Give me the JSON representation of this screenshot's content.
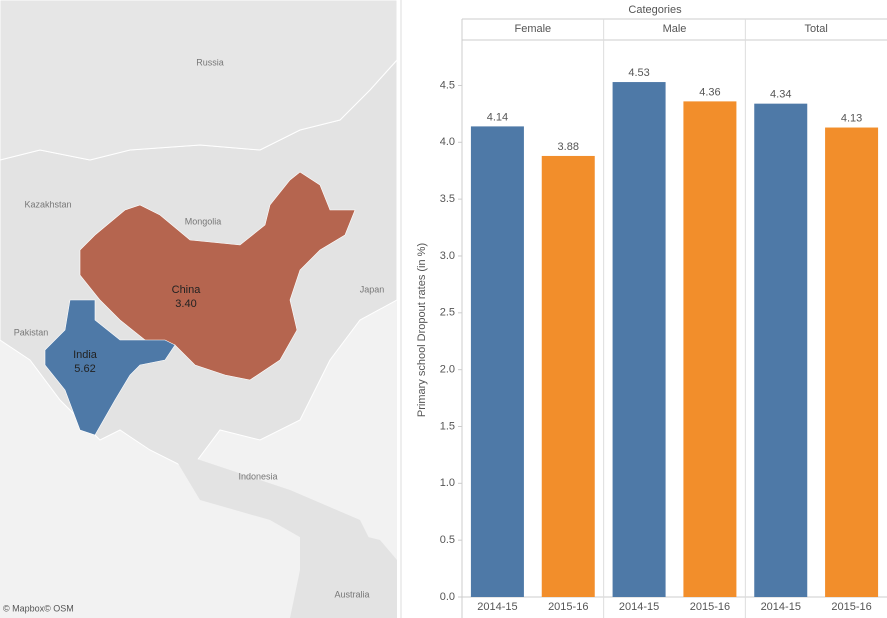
{
  "chart_data": [
    {
      "type": "bar",
      "title": "Categories",
      "y_label": "Primary school Dropout rates (in %)",
      "categories": [
        "Female",
        "Male",
        "Total"
      ],
      "series": [
        {
          "name": "2014-15",
          "color": "#4e79a7",
          "values": [
            4.14,
            4.53,
            4.34
          ]
        },
        {
          "name": "2015-16",
          "color": "#f28e2b",
          "values": [
            3.88,
            4.36,
            4.13
          ]
        }
      ],
      "ylim": [
        0,
        4.9
      ],
      "yticks": [
        {
          "value": 0,
          "label": "0.0"
        },
        0.5,
        {
          "value": 1,
          "label": "1.0"
        },
        1.5,
        {
          "value": 2,
          "label": "2.0"
        },
        2.5,
        {
          "value": 3,
          "label": "3.0"
        },
        3.5,
        {
          "value": 4,
          "label": "4.0"
        },
        4.5
      ]
    },
    {
      "type": "map",
      "categories": [
        "China",
        "India"
      ],
      "values": [
        3.4,
        5.62
      ],
      "value_labels": [
        "3.40",
        "5.62"
      ],
      "colors": [
        "#b5654f",
        "#4e79a7"
      ],
      "place_labels": [
        "Russia",
        "Kazakhstan",
        "Mongolia",
        "Japan",
        "Pakistan",
        "Indonesia",
        "Australia"
      ],
      "attribution": "© Mapbox© OSM"
    }
  ]
}
